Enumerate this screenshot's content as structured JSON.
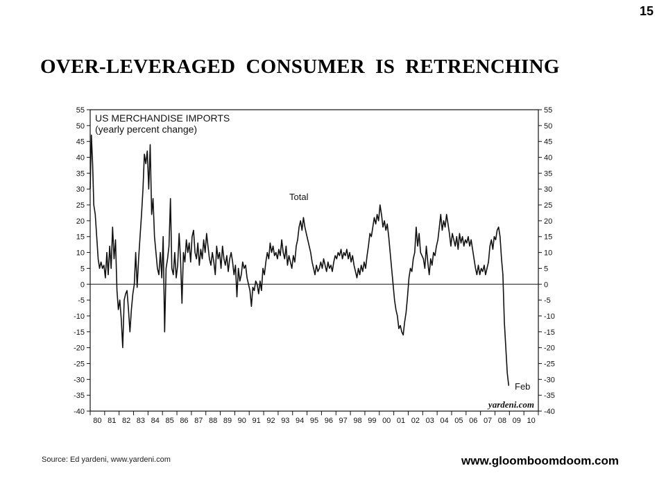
{
  "page_number": "15",
  "title": "OVER-LEVERAGED  CONSUMER  IS  RETRENCHING",
  "source": "Source: Ed yardeni, www.yardeni.com",
  "website": "www.gloomboomdoom.com",
  "chart_data": {
    "type": "line",
    "title": "US MERCHANDISE IMPORTS",
    "subtitle": "(yearly percent change)",
    "series_label": "Total",
    "end_annotation": "Feb",
    "brand": "yardeni.com",
    "xlabel": "",
    "ylabel": "",
    "ylim": [
      -40,
      55
    ],
    "yticks": [
      55,
      50,
      45,
      40,
      35,
      30,
      25,
      20,
      15,
      10,
      5,
      0,
      -5,
      -10,
      -15,
      -20,
      -25,
      -30,
      -35,
      -40
    ],
    "xlim": [
      1980,
      2011
    ],
    "xtick_labels": [
      "80",
      "81",
      "82",
      "83",
      "84",
      "85",
      "86",
      "87",
      "88",
      "89",
      "90",
      "91",
      "92",
      "93",
      "94",
      "95",
      "96",
      "97",
      "98",
      "99",
      "00",
      "01",
      "02",
      "03",
      "04",
      "05",
      "06",
      "07",
      "08",
      "09",
      "10"
    ],
    "reference_line": 0,
    "grid": false,
    "line_color": "#111111",
    "series": [
      {
        "values": [
          [
            1980.0,
            30
          ],
          [
            1980.08,
            47
          ],
          [
            1980.17,
            38
          ],
          [
            1980.25,
            25
          ],
          [
            1980.35,
            22
          ],
          [
            1980.45,
            15
          ],
          [
            1980.55,
            8
          ],
          [
            1980.65,
            5
          ],
          [
            1980.75,
            7
          ],
          [
            1980.85,
            5
          ],
          [
            1980.95,
            6
          ],
          [
            1981.05,
            2
          ],
          [
            1981.15,
            10
          ],
          [
            1981.25,
            3
          ],
          [
            1981.35,
            12
          ],
          [
            1981.45,
            5
          ],
          [
            1981.55,
            18
          ],
          [
            1981.65,
            8
          ],
          [
            1981.75,
            14
          ],
          [
            1981.85,
            -2
          ],
          [
            1981.95,
            -8
          ],
          [
            1982.05,
            -5
          ],
          [
            1982.15,
            -11
          ],
          [
            1982.25,
            -20
          ],
          [
            1982.35,
            -5
          ],
          [
            1982.45,
            -3
          ],
          [
            1982.55,
            -2
          ],
          [
            1982.65,
            -8
          ],
          [
            1982.75,
            -15
          ],
          [
            1982.85,
            -8
          ],
          [
            1982.95,
            -3
          ],
          [
            1983.05,
            0
          ],
          [
            1983.15,
            10
          ],
          [
            1983.25,
            -1
          ],
          [
            1983.35,
            8
          ],
          [
            1983.45,
            15
          ],
          [
            1983.55,
            22
          ],
          [
            1983.65,
            30
          ],
          [
            1983.75,
            41
          ],
          [
            1983.85,
            38
          ],
          [
            1983.95,
            42
          ],
          [
            1984.05,
            30
          ],
          [
            1984.15,
            44
          ],
          [
            1984.25,
            22
          ],
          [
            1984.35,
            27
          ],
          [
            1984.45,
            15
          ],
          [
            1984.55,
            10
          ],
          [
            1984.65,
            5
          ],
          [
            1984.75,
            3
          ],
          [
            1984.85,
            10
          ],
          [
            1984.95,
            2
          ],
          [
            1985.05,
            15
          ],
          [
            1985.15,
            -15
          ],
          [
            1985.25,
            5
          ],
          [
            1985.35,
            8
          ],
          [
            1985.45,
            12
          ],
          [
            1985.55,
            27
          ],
          [
            1985.65,
            5
          ],
          [
            1985.75,
            3
          ],
          [
            1985.85,
            10
          ],
          [
            1985.95,
            2
          ],
          [
            1986.05,
            6
          ],
          [
            1986.15,
            16
          ],
          [
            1986.25,
            8
          ],
          [
            1986.35,
            -6
          ],
          [
            1986.45,
            10
          ],
          [
            1986.55,
            7
          ],
          [
            1986.65,
            14
          ],
          [
            1986.75,
            10
          ],
          [
            1986.85,
            13
          ],
          [
            1986.95,
            7
          ],
          [
            1987.05,
            15
          ],
          [
            1987.15,
            17
          ],
          [
            1987.25,
            10
          ],
          [
            1987.35,
            8
          ],
          [
            1987.45,
            13
          ],
          [
            1987.55,
            6
          ],
          [
            1987.65,
            11
          ],
          [
            1987.75,
            8
          ],
          [
            1987.85,
            14
          ],
          [
            1987.95,
            10
          ],
          [
            1988.05,
            16
          ],
          [
            1988.15,
            12
          ],
          [
            1988.25,
            8
          ],
          [
            1988.35,
            6
          ],
          [
            1988.45,
            10
          ],
          [
            1988.55,
            7
          ],
          [
            1988.65,
            3
          ],
          [
            1988.75,
            12
          ],
          [
            1988.85,
            8
          ],
          [
            1988.95,
            10
          ],
          [
            1989.05,
            5
          ],
          [
            1989.15,
            12
          ],
          [
            1989.25,
            8
          ],
          [
            1989.35,
            6
          ],
          [
            1989.45,
            9
          ],
          [
            1989.55,
            4
          ],
          [
            1989.65,
            8
          ],
          [
            1989.75,
            10
          ],
          [
            1989.85,
            7
          ],
          [
            1989.95,
            3
          ],
          [
            1990.05,
            6
          ],
          [
            1990.15,
            -4
          ],
          [
            1990.25,
            5
          ],
          [
            1990.35,
            1
          ],
          [
            1990.45,
            3
          ],
          [
            1990.55,
            7
          ],
          [
            1990.65,
            5
          ],
          [
            1990.75,
            6
          ],
          [
            1990.85,
            2
          ],
          [
            1990.95,
            0
          ],
          [
            1991.05,
            -2
          ],
          [
            1991.15,
            -7
          ],
          [
            1991.25,
            -1
          ],
          [
            1991.35,
            -2
          ],
          [
            1991.45,
            1
          ],
          [
            1991.55,
            0
          ],
          [
            1991.65,
            -3
          ],
          [
            1991.75,
            1
          ],
          [
            1991.85,
            -2
          ],
          [
            1991.95,
            5
          ],
          [
            1992.05,
            3
          ],
          [
            1992.15,
            7
          ],
          [
            1992.25,
            10
          ],
          [
            1992.35,
            8
          ],
          [
            1992.45,
            13
          ],
          [
            1992.55,
            10
          ],
          [
            1992.65,
            12
          ],
          [
            1992.75,
            9
          ],
          [
            1992.85,
            10
          ],
          [
            1992.95,
            8
          ],
          [
            1993.05,
            11
          ],
          [
            1993.15,
            9
          ],
          [
            1993.25,
            14
          ],
          [
            1993.35,
            10
          ],
          [
            1993.45,
            8
          ],
          [
            1993.55,
            12
          ],
          [
            1993.65,
            6
          ],
          [
            1993.75,
            9
          ],
          [
            1993.85,
            7
          ],
          [
            1993.95,
            5
          ],
          [
            1994.05,
            9
          ],
          [
            1994.15,
            7
          ],
          [
            1994.25,
            12
          ],
          [
            1994.35,
            14
          ],
          [
            1994.45,
            18
          ],
          [
            1994.55,
            20
          ],
          [
            1994.65,
            17
          ],
          [
            1994.75,
            21
          ],
          [
            1994.85,
            18
          ],
          [
            1994.95,
            16
          ],
          [
            1995.05,
            14
          ],
          [
            1995.15,
            12
          ],
          [
            1995.25,
            10
          ],
          [
            1995.35,
            7
          ],
          [
            1995.45,
            5
          ],
          [
            1995.55,
            3
          ],
          [
            1995.65,
            6
          ],
          [
            1995.75,
            4
          ],
          [
            1995.85,
            5
          ],
          [
            1995.95,
            7
          ],
          [
            1996.05,
            5
          ],
          [
            1996.15,
            8
          ],
          [
            1996.25,
            6
          ],
          [
            1996.35,
            4
          ],
          [
            1996.45,
            7
          ],
          [
            1996.55,
            5
          ],
          [
            1996.65,
            6
          ],
          [
            1996.75,
            4
          ],
          [
            1996.85,
            7
          ],
          [
            1996.95,
            9
          ],
          [
            1997.05,
            8
          ],
          [
            1997.15,
            10
          ],
          [
            1997.25,
            9
          ],
          [
            1997.35,
            11
          ],
          [
            1997.45,
            8
          ],
          [
            1997.55,
            10
          ],
          [
            1997.65,
            9
          ],
          [
            1997.75,
            11
          ],
          [
            1997.85,
            8
          ],
          [
            1997.95,
            10
          ],
          [
            1998.05,
            7
          ],
          [
            1998.15,
            9
          ],
          [
            1998.25,
            6
          ],
          [
            1998.35,
            4
          ],
          [
            1998.45,
            2
          ],
          [
            1998.55,
            5
          ],
          [
            1998.65,
            3
          ],
          [
            1998.75,
            6
          ],
          [
            1998.85,
            4
          ],
          [
            1998.95,
            7
          ],
          [
            1999.05,
            5
          ],
          [
            1999.15,
            9
          ],
          [
            1999.25,
            12
          ],
          [
            1999.35,
            16
          ],
          [
            1999.45,
            15
          ],
          [
            1999.55,
            18
          ],
          [
            1999.65,
            21
          ],
          [
            1999.75,
            19
          ],
          [
            1999.85,
            22
          ],
          [
            1999.95,
            20
          ],
          [
            2000.05,
            25
          ],
          [
            2000.15,
            22
          ],
          [
            2000.25,
            18
          ],
          [
            2000.35,
            20
          ],
          [
            2000.45,
            17
          ],
          [
            2000.55,
            19
          ],
          [
            2000.65,
            15
          ],
          [
            2000.75,
            10
          ],
          [
            2000.85,
            5
          ],
          [
            2000.95,
            0
          ],
          [
            2001.05,
            -5
          ],
          [
            2001.15,
            -8
          ],
          [
            2001.25,
            -10
          ],
          [
            2001.35,
            -14
          ],
          [
            2001.45,
            -13
          ],
          [
            2001.55,
            -15
          ],
          [
            2001.65,
            -16
          ],
          [
            2001.75,
            -12
          ],
          [
            2001.85,
            -9
          ],
          [
            2001.95,
            -4
          ],
          [
            2002.05,
            2
          ],
          [
            2002.15,
            5
          ],
          [
            2002.25,
            4
          ],
          [
            2002.35,
            8
          ],
          [
            2002.45,
            10
          ],
          [
            2002.55,
            18
          ],
          [
            2002.65,
            12
          ],
          [
            2002.75,
            16
          ],
          [
            2002.85,
            10
          ],
          [
            2002.95,
            9
          ],
          [
            2003.05,
            8
          ],
          [
            2003.15,
            5
          ],
          [
            2003.25,
            12
          ],
          [
            2003.35,
            7
          ],
          [
            2003.45,
            3
          ],
          [
            2003.55,
            8
          ],
          [
            2003.65,
            6
          ],
          [
            2003.75,
            10
          ],
          [
            2003.85,
            9
          ],
          [
            2003.95,
            12
          ],
          [
            2004.05,
            14
          ],
          [
            2004.15,
            18
          ],
          [
            2004.25,
            22
          ],
          [
            2004.35,
            17
          ],
          [
            2004.45,
            20
          ],
          [
            2004.55,
            18
          ],
          [
            2004.65,
            22
          ],
          [
            2004.75,
            19
          ],
          [
            2004.85,
            16
          ],
          [
            2004.95,
            12
          ],
          [
            2005.05,
            16
          ],
          [
            2005.15,
            14
          ],
          [
            2005.25,
            12
          ],
          [
            2005.35,
            15
          ],
          [
            2005.45,
            11
          ],
          [
            2005.55,
            16
          ],
          [
            2005.65,
            13
          ],
          [
            2005.75,
            15
          ],
          [
            2005.85,
            12
          ],
          [
            2005.95,
            14
          ],
          [
            2006.05,
            13
          ],
          [
            2006.15,
            15
          ],
          [
            2006.25,
            12
          ],
          [
            2006.35,
            14
          ],
          [
            2006.45,
            11
          ],
          [
            2006.55,
            8
          ],
          [
            2006.65,
            5
          ],
          [
            2006.75,
            3
          ],
          [
            2006.85,
            6
          ],
          [
            2006.95,
            3
          ],
          [
            2007.05,
            5
          ],
          [
            2007.15,
            4
          ],
          [
            2007.25,
            6
          ],
          [
            2007.35,
            3
          ],
          [
            2007.45,
            5
          ],
          [
            2007.55,
            7
          ],
          [
            2007.65,
            12
          ],
          [
            2007.75,
            14
          ],
          [
            2007.85,
            11
          ],
          [
            2007.95,
            15
          ],
          [
            2008.05,
            14
          ],
          [
            2008.15,
            17
          ],
          [
            2008.25,
            18
          ],
          [
            2008.35,
            15
          ],
          [
            2008.45,
            8
          ],
          [
            2008.55,
            3
          ],
          [
            2008.65,
            -12
          ],
          [
            2008.75,
            -20
          ],
          [
            2008.85,
            -28
          ],
          [
            2008.95,
            -32
          ]
        ]
      }
    ]
  }
}
